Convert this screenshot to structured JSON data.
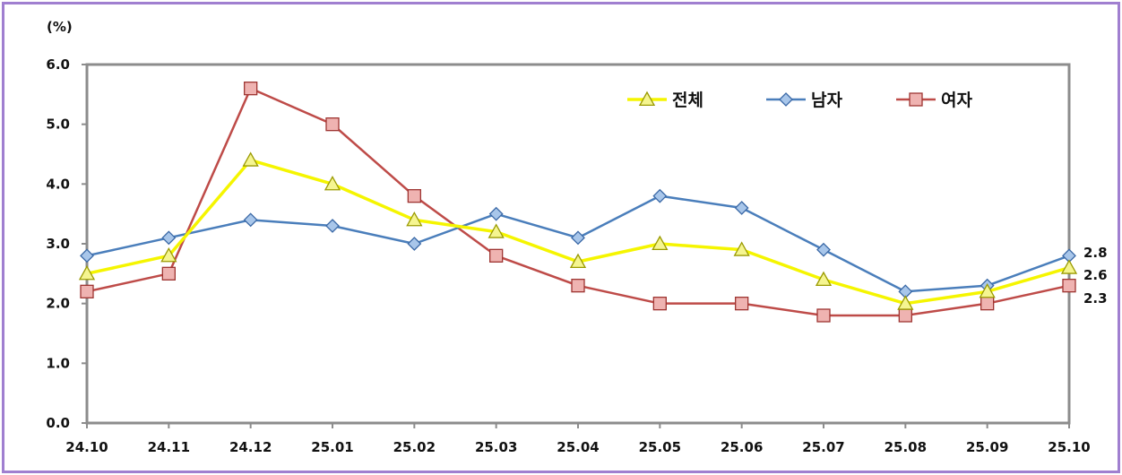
{
  "chart_data": {
    "type": "line",
    "unit_label": "(%)",
    "categories": [
      "24.10",
      "24.11",
      "24.12",
      "25.01",
      "25.02",
      "25.03",
      "25.04",
      "25.05",
      "25.06",
      "25.07",
      "25.08",
      "25.09",
      "25.10"
    ],
    "ylim": [
      0,
      6
    ],
    "yticks": [
      "0.0",
      "1.0",
      "2.0",
      "3.0",
      "4.0",
      "5.0",
      "6.0"
    ],
    "grid": false,
    "legend_position": "top-right",
    "series": [
      {
        "name": "전체",
        "marker": "triangle",
        "color": "#f5f500",
        "values": [
          2.5,
          2.8,
          4.4,
          4.0,
          3.4,
          3.2,
          2.7,
          3.0,
          2.9,
          2.4,
          2.0,
          2.2,
          2.6
        ]
      },
      {
        "name": "남자",
        "marker": "diamond",
        "color": "#4a7ebb",
        "values": [
          2.8,
          3.1,
          3.4,
          3.3,
          3.0,
          3.5,
          3.1,
          3.8,
          3.6,
          2.9,
          2.2,
          2.3,
          2.8
        ]
      },
      {
        "name": "여자",
        "marker": "square",
        "color": "#be4b48",
        "values": [
          2.2,
          2.5,
          5.6,
          5.0,
          3.8,
          2.8,
          2.3,
          2.0,
          2.0,
          1.8,
          1.8,
          2.0,
          2.3
        ]
      }
    ],
    "end_labels": [
      "2.8",
      "2.6",
      "2.3"
    ]
  }
}
